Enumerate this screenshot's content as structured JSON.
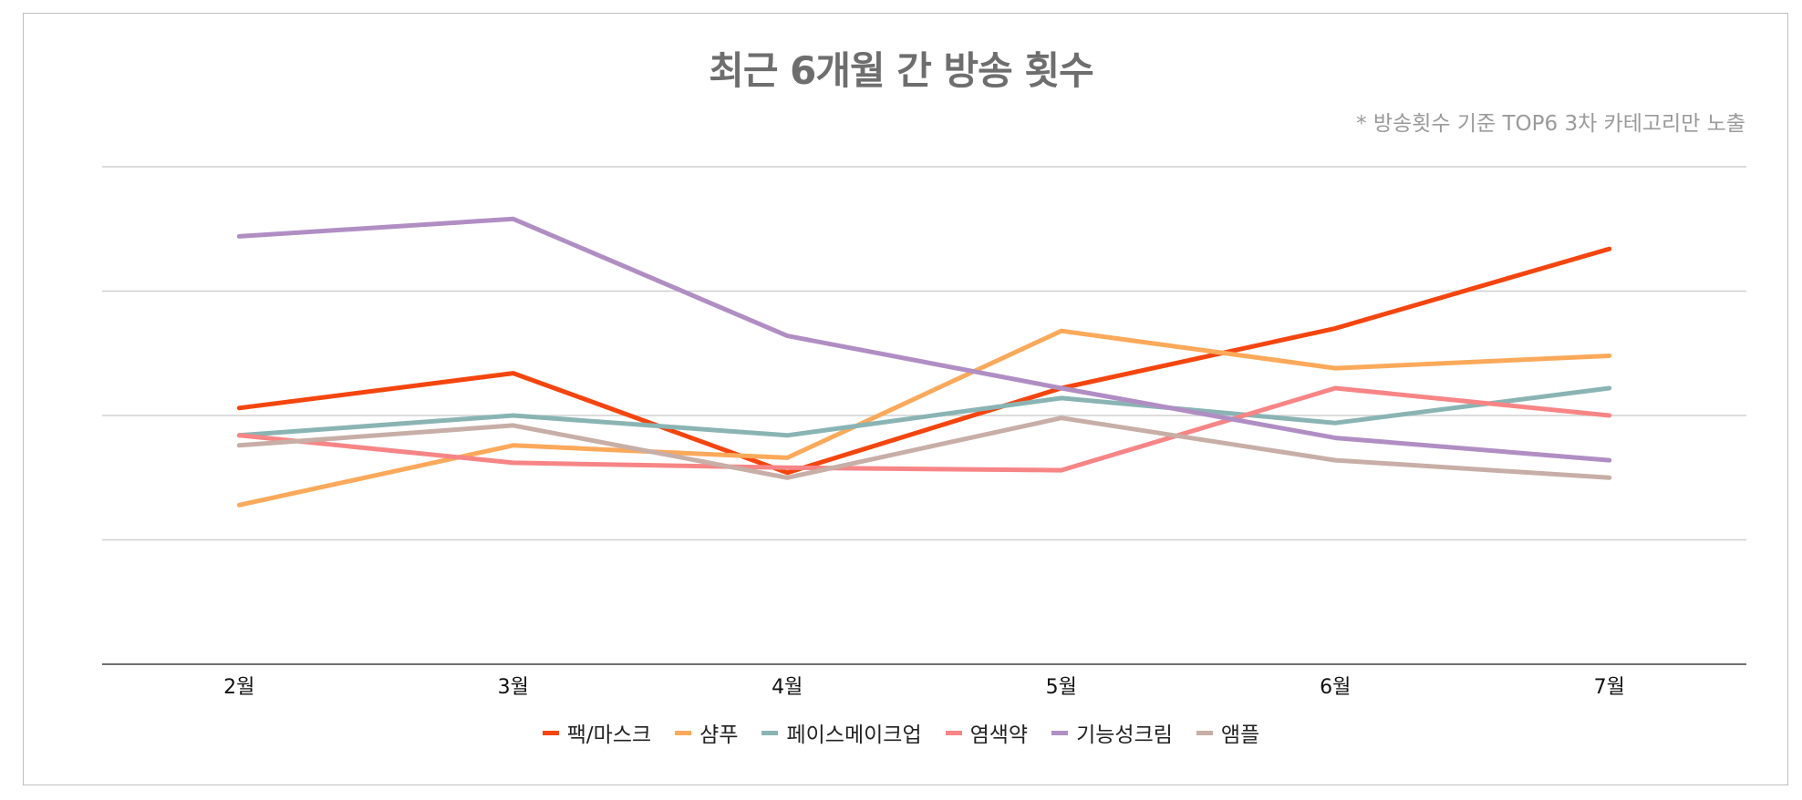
{
  "chart_data": {
    "type": "line",
    "title": "최근 6개월 간 방송 횟수",
    "note": "* 방송횟수 기준 TOP6 3차 카테고리만 노출",
    "categories": [
      "2월",
      "3월",
      "4월",
      "5월",
      "6월",
      "7월"
    ],
    "ylim": [
      0,
      100
    ],
    "yticks": [
      0,
      25,
      50,
      75,
      100
    ],
    "show_y_tick_labels": false,
    "grid": true,
    "legend_position": "bottom",
    "series": [
      {
        "name": "팩/마스크",
        "color": "#f4450f",
        "values": [
          51.5,
          58.5,
          38.5,
          55.5,
          67.5,
          83.5
        ]
      },
      {
        "name": "샴푸",
        "color": "#fba95a",
        "values": [
          32,
          44,
          41.5,
          67,
          59.5,
          62
        ]
      },
      {
        "name": "페이스메이크업",
        "color": "#8ab4b4",
        "values": [
          46,
          50,
          46,
          53.5,
          48.5,
          55.5
        ]
      },
      {
        "name": "염색약",
        "color": "#f78586",
        "values": [
          46,
          40.5,
          39.5,
          39,
          55.5,
          50
        ]
      },
      {
        "name": "기능성크림",
        "color": "#b08ec3",
        "values": [
          86,
          89.5,
          66,
          55.5,
          45.5,
          41
        ]
      },
      {
        "name": "앰플",
        "color": "#c7aea6",
        "values": [
          44,
          48,
          37.5,
          49.5,
          41,
          37.5
        ]
      }
    ]
  }
}
